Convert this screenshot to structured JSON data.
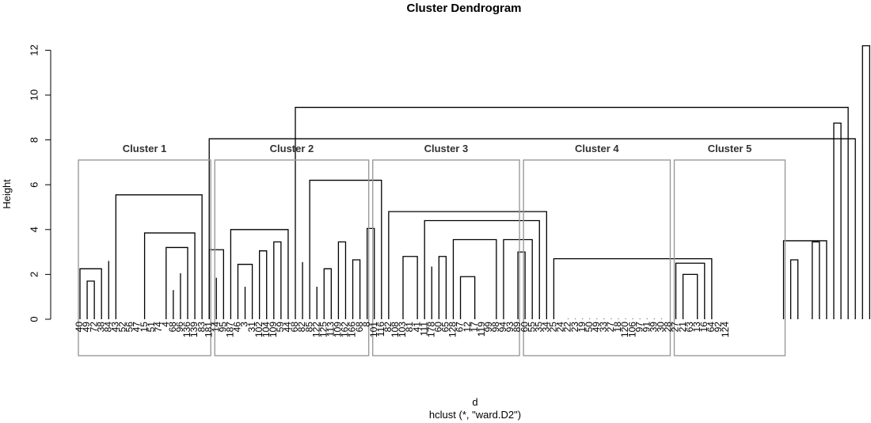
{
  "chart_data": {
    "type": "dendrogram",
    "title": "Cluster Dendrogram",
    "ylabel": "Height",
    "xlabel": "d",
    "sub": "hclust (*, \"ward.D2\")",
    "ylim": [
      0,
      12.5
    ],
    "yticks": [
      0,
      2,
      4,
      6,
      8,
      10,
      12
    ],
    "leaves": [
      "40",
      "49",
      "72",
      "38",
      "84",
      "43",
      "52",
      "56",
      "47",
      "15",
      "51",
      "74",
      "4",
      "68",
      "96",
      "136",
      "139",
      "83",
      "181",
      "14",
      "95",
      "187",
      "46",
      "3",
      "31",
      "102",
      "104",
      "109",
      "59",
      "44",
      "68",
      "82",
      "85",
      "122",
      "125",
      "113",
      "109",
      "162",
      "166",
      "68",
      "8",
      "101",
      "116",
      "82",
      "108",
      "103",
      "81",
      "41",
      "111",
      "178",
      "60",
      "65",
      "128",
      "67",
      "12",
      "17",
      "119",
      "99",
      "98",
      "94",
      "93",
      "89",
      "60",
      "55",
      "35",
      "34",
      "25",
      "24",
      "22",
      "23",
      "19",
      "50",
      "49",
      "33",
      "27",
      "18",
      "120",
      "106",
      "97",
      "91",
      "39",
      "30",
      "28",
      "27",
      "21",
      "63",
      "13",
      "16",
      "64",
      "92",
      "124"
    ],
    "merges": [
      {
        "l": 0,
        "r": 1,
        "h": 1.3
      },
      {
        "l": 2,
        "r": 3,
        "h": 1.0
      },
      {
        "l": 4,
        "r": 5,
        "h": 1.3
      },
      {
        "l": -2,
        "r": -3,
        "h": 1.7
      },
      {
        "l": -1,
        "r": -4,
        "h": 2.25
      },
      {
        "l": -5,
        "r": 6,
        "h": 2.6
      },
      {
        "l": 7,
        "r": 8,
        "h": 1.0
      },
      {
        "l": 9,
        "r": -7,
        "h": 1.3
      },
      {
        "l": 10,
        "r": -8,
        "h": 1.85
      },
      {
        "l": 11,
        "r": -9,
        "h": 2.3
      },
      {
        "l": 12,
        "r": 13,
        "h": 0.05
      },
      {
        "l": 14,
        "r": -11,
        "h": 1.15
      },
      {
        "l": 15,
        "r": -12,
        "h": 1.8
      },
      {
        "l": 16,
        "r": 17,
        "h": 1.0
      },
      {
        "l": -14,
        "r": 18,
        "h": 1.3
      },
      {
        "l": -15,
        "r": 19,
        "h": 2.05
      },
      {
        "l": -13,
        "r": -16,
        "h": 3.2
      },
      {
        "l": -10,
        "r": -17,
        "h": 3.85
      },
      {
        "l": -6,
        "r": -18,
        "h": 5.55
      },
      {
        "l": 20,
        "r": 21,
        "h": 1.75
      },
      {
        "l": 22,
        "r": 23,
        "h": 1.45
      },
      {
        "l": -20,
        "r": 24,
        "h": 1.85
      },
      {
        "l": -19,
        "r": -21,
        "h": 3.1
      },
      {
        "l": 25,
        "r": 26,
        "h": 1.45
      },
      {
        "l": 27,
        "r": 28,
        "h": 1.85
      },
      {
        "l": -24,
        "r": 29,
        "h": 1.45
      },
      {
        "l": -23,
        "r": -25,
        "h": 2.45
      },
      {
        "l": 30,
        "r": 31,
        "h": 2.05
      },
      {
        "l": -27,
        "r": -26,
        "h": 3.05
      },
      {
        "l": 32,
        "r": 33,
        "h": 2.75
      },
      {
        "l": -29,
        "r": -28,
        "h": 3.45
      },
      {
        "l": -22,
        "r": -30,
        "h": 4.0
      },
      {
        "l": 34,
        "r": 35,
        "h": 1.3
      },
      {
        "l": -32,
        "r": 36,
        "h": 2.55
      },
      {
        "l": 37,
        "r": 38,
        "h": 1.75
      },
      {
        "l": -34,
        "r": 39,
        "h": 1.45
      },
      {
        "l": 40,
        "r": 41,
        "h": 1.45
      },
      {
        "l": -35,
        "r": -36,
        "h": 2.25
      },
      {
        "l": 42,
        "r": 43,
        "h": 1.85
      },
      {
        "l": -37,
        "r": -38,
        "h": 3.45
      },
      {
        "l": 44,
        "r": 45,
        "h": 1.45
      },
      {
        "l": -39,
        "r": -40,
        "h": 2.65
      },
      {
        "l": -41,
        "r": -42,
        "h": 4.05
      },
      {
        "l": -33,
        "r": -43,
        "h": 6.2
      },
      {
        "l": 46,
        "r": 47,
        "h": 1.45
      },
      {
        "l": 48,
        "r": -45,
        "h": 1.9
      },
      {
        "l": 49,
        "r": 50,
        "h": 1.0
      },
      {
        "l": 51,
        "r": -47,
        "h": 2.1
      },
      {
        "l": -46,
        "r": -48,
        "h": 2.8
      },
      {
        "l": 52,
        "r": 53,
        "h": 1.75
      },
      {
        "l": -50,
        "r": 54,
        "h": 2.35
      },
      {
        "l": 55,
        "r": 56,
        "h": 2.05
      },
      {
        "l": -51,
        "r": -52,
        "h": 2.8
      },
      {
        "l": 57,
        "r": 58,
        "h": 1.0
      },
      {
        "l": 59,
        "r": 60,
        "h": 1.0
      },
      {
        "l": 61,
        "r": -55,
        "h": 1.3
      },
      {
        "l": -54,
        "r": -56,
        "h": 1.9
      },
      {
        "l": 62,
        "r": -57,
        "h": 2.5
      },
      {
        "l": 63,
        "r": -58,
        "h": 2.85
      },
      {
        "l": -53,
        "r": -59,
        "h": 3.55
      },
      {
        "l": 64,
        "r": 65,
        "h": 1.3
      },
      {
        "l": 66,
        "r": -61,
        "h": 1.0
      },
      {
        "l": 67,
        "r": 68,
        "h": 1.75
      },
      {
        "l": -62,
        "r": -63,
        "h": 3.0
      },
      {
        "l": -60,
        "r": -64,
        "h": 3.55
      },
      {
        "l": -49,
        "r": -65,
        "h": 4.4
      },
      {
        "l": -44,
        "r": -66,
        "h": 4.8
      },
      {
        "l": 71,
        "r": 72,
        "h": 1.75
      },
      {
        "l": 70,
        "r": -68,
        "h": 2.25
      },
      {
        "l": 75,
        "r": 76,
        "h": 0.02
      },
      {
        "l": -69,
        "r": 77,
        "h": 0.02
      },
      {
        "l": -70,
        "r": 78,
        "h": 0.02
      },
      {
        "l": -71,
        "r": 79,
        "h": 0.02
      },
      {
        "l": -72,
        "r": 80,
        "h": 0.02
      },
      {
        "l": -73,
        "r": 81,
        "h": 0.02
      },
      {
        "l": -74,
        "r": 82,
        "h": 0.02
      },
      {
        "l": -75,
        "r": 83,
        "h": 0.02
      },
      {
        "l": -76,
        "r": 84,
        "h": 0.02
      },
      {
        "l": -77,
        "r": 85,
        "h": 0.02
      },
      {
        "l": -78,
        "r": 86,
        "h": 0.02
      },
      {
        "l": -79,
        "r": 87,
        "h": 0.02
      },
      {
        "l": -80,
        "r": 88,
        "h": 0.02
      },
      {
        "l": -81,
        "r": 89,
        "h": 0.02
      },
      {
        "l": -82,
        "r": 90,
        "h": 0.02
      },
      {
        "l": 74,
        "r": -83,
        "h": 1.4
      },
      {
        "l": 92,
        "r": 93,
        "h": 1.0
      },
      {
        "l": 94,
        "r": 95,
        "h": 0.05
      },
      {
        "l": 96,
        "r": -86,
        "h": 1.15
      },
      {
        "l": -85,
        "r": -87,
        "h": 2.0
      },
      {
        "l": -84,
        "r": -88,
        "h": 2.5
      },
      {
        "l": -67,
        "r": -89,
        "h": 2.7
      },
      {
        "l": 99,
        "r": 100,
        "h": 0.02
      },
      {
        "l": 98,
        "r": -91,
        "h": 0.02
      },
      {
        "l": 101,
        "r": -92,
        "h": 0.02
      },
      {
        "l": 102,
        "r": -93,
        "h": 0.02
      },
      {
        "l": 103,
        "r": -94,
        "h": 0.02
      },
      {
        "l": 104,
        "r": -95,
        "h": 0.02
      },
      {
        "l": 105,
        "r": -96,
        "h": 0.02
      },
      {
        "l": 106,
        "r": -97,
        "h": 0.02
      },
      {
        "l": 97,
        "r": -98,
        "h": 1.4
      },
      {
        "l": 108,
        "r": 109,
        "h": 1.25
      },
      {
        "l": 110,
        "r": 111,
        "h": 0.02
      },
      {
        "l": -100,
        "r": -101,
        "h": 2.65
      },
      {
        "l": 112,
        "r": -102,
        "h": 1.45
      },
      {
        "l": -103,
        "r": -104,
        "h": 3.45
      },
      {
        "l": -99,
        "r": -105,
        "h": 3.5
      },
      {
        "l": -106,
        "r": -107,
        "h": 8.75
      },
      {
        "l": -31,
        "r": -108,
        "h": 9.45
      },
      {
        "l": -19,
        "r": -109,
        "h": 8.05
      },
      {
        "l": -110,
        "r": -111,
        "h": 12.2
      }
    ],
    "clusters": [
      {
        "label": "Cluster 1",
        "start": 0,
        "end": 18
      },
      {
        "label": "Cluster 2",
        "start": 19,
        "end": 40
      },
      {
        "label": "Cluster 3",
        "start": 41,
        "end": 61
      },
      {
        "label": "Cluster 4",
        "start": 62,
        "end": 82
      },
      {
        "label": "Cluster 5",
        "start": 83,
        "end": 98
      }
    ]
  }
}
